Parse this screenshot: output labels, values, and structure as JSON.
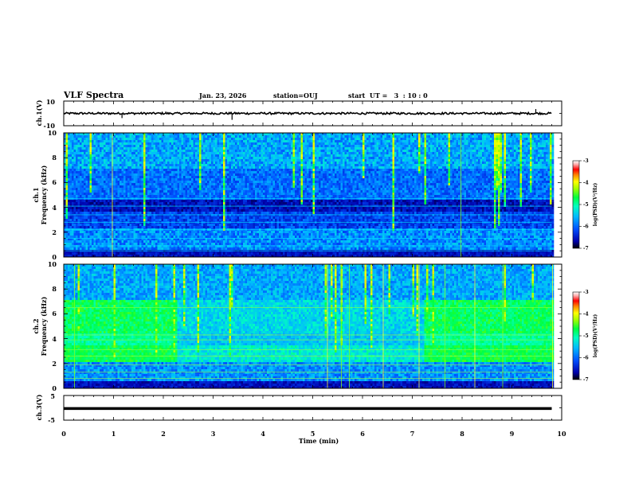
{
  "header": {
    "title": "VLF Spectra",
    "date": "Jan. 23, 2026",
    "station": "station=OUJ",
    "start_time": "start  UT =   3  : 10 : 0"
  },
  "chart_data": [
    {
      "id": "ch1-waveform",
      "type": "line",
      "ylabel": "ch.1(V)",
      "ylim": [
        -10,
        10
      ],
      "yticks": [
        "10",
        "-10"
      ],
      "baseline": 0,
      "spikes": [
        {
          "t": 1.17,
          "v": -3.8
        },
        {
          "t": 2.05,
          "v": 1.5
        },
        {
          "t": 3.38,
          "v": -5.2
        },
        {
          "t": 9.48,
          "v": 3.5
        }
      ]
    },
    {
      "id": "ch1-spectrogram",
      "type": "heatmap",
      "ylabel_line1": "ch.1",
      "ylabel_line2": "Frequency (kHz)",
      "ylim": [
        0,
        10
      ],
      "yticks": [
        "0",
        "2",
        "4",
        "6",
        "8",
        "10"
      ],
      "colorbar": {
        "label": "log(PSD)(V²/Hz)",
        "range": [
          -7,
          -3
        ],
        "ticks": [
          "-3",
          "-4",
          "-5",
          "-6",
          "-7"
        ]
      }
    },
    {
      "id": "ch2-spectrogram",
      "type": "heatmap",
      "ylabel_line1": "ch.2",
      "ylabel_line2": "Frequency (kHz)",
      "ylim": [
        0,
        10
      ],
      "yticks": [
        "0",
        "2",
        "4",
        "6",
        "8",
        "10"
      ],
      "enhanced_intervals_min": [
        [
          0,
          2.28
        ],
        [
          7.2,
          9.8
        ]
      ],
      "colorbar": {
        "label": "log(PSD)(V²/Hz)",
        "range": [
          -7,
          -3
        ],
        "ticks": [
          "-3",
          "-4",
          "-5",
          "-6",
          "-7"
        ]
      }
    },
    {
      "id": "ch3-waveform",
      "type": "line",
      "ylabel": "ch.3(V)",
      "ylim": [
        -5,
        5
      ],
      "yticks": [
        "5",
        "-5"
      ],
      "baseline": -0.3
    }
  ],
  "time_axis": {
    "xlabel": "Time (min)",
    "xlim": [
      0,
      10
    ],
    "data_end_min": 9.8,
    "ticks": [
      "0",
      "1",
      "2",
      "3",
      "4",
      "5",
      "6",
      "7",
      "8",
      "9",
      "10"
    ]
  },
  "colors": {
    "waveform": "#000000",
    "colormap": [
      "#000000",
      "#0000aa",
      "#0050ff",
      "#00b8ff",
      "#00ffc0",
      "#00ff40",
      "#a0ff00",
      "#ffff00",
      "#ff8000",
      "#ff0000",
      "#ffb0b0",
      "#ffffff"
    ]
  }
}
